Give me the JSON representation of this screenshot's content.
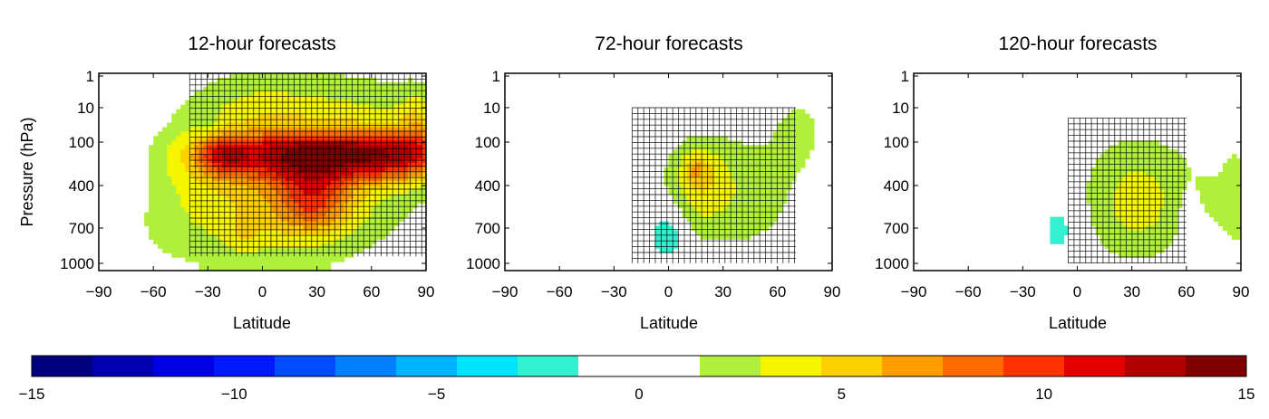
{
  "chart_data": {
    "type": "heatmap",
    "panels": [
      {
        "title": "12-hour forecasts",
        "xlabel": "Latitude",
        "ylabel": "Pressure (hPa)",
        "yticks": [
          "1",
          "10",
          "100",
          "400",
          "700",
          "1000"
        ],
        "blobs": [
          {
            "lat": -20,
            "lev": 3.0,
            "rx": 72,
            "ry": 2.2,
            "a": 2.8
          },
          {
            "lat": 50,
            "lev": 1.6,
            "rx": 50,
            "ry": 1.6,
            "a": 3.0
          },
          {
            "lat": 20,
            "lev": 3.5,
            "rx": 58,
            "ry": 1.6,
            "a": 2.0
          },
          {
            "lat": -5,
            "lev": 1.1,
            "rx": 32,
            "ry": 1.3,
            "a": 1.8
          },
          {
            "lat": 30,
            "lev": 2.3,
            "rx": 55,
            "ry": 0.55,
            "a": 9.0
          },
          {
            "lat": 75,
            "lev": 2.3,
            "rx": 25,
            "ry": 0.6,
            "a": 5.0
          },
          {
            "lat": -22,
            "lev": 2.3,
            "rx": 14,
            "ry": 0.45,
            "a": 4.5
          },
          {
            "lat": 28,
            "lev": 3.3,
            "rx": 20,
            "ry": 0.8,
            "a": 5.5
          },
          {
            "lat": 85,
            "lev": 1.5,
            "rx": 10,
            "ry": 1.0,
            "a": 3.0
          },
          {
            "lat": -10,
            "lev": 4.2,
            "rx": 9,
            "ry": 0.5,
            "a": 1.5
          },
          {
            "lat": -72,
            "lev": 2.4,
            "rx": 16,
            "ry": 1.4,
            "a": -1.5
          },
          {
            "lat": -58,
            "lev": 0.9,
            "rx": 6,
            "ry": 0.4,
            "a": -1.2
          },
          {
            "lat": -30,
            "lev": 1.4,
            "rx": 5,
            "ry": 0.4,
            "a": -1.2
          }
        ],
        "hatch": {
          "lat": [
            -40,
            90
          ],
          "lev": [
            0,
            4.8
          ]
        }
      },
      {
        "title": "72-hour forecasts",
        "xlabel": "Latitude",
        "ylabel": "",
        "yticks": [
          "1",
          "10",
          "100",
          "400",
          "700",
          "1000"
        ],
        "blobs": [
          {
            "lat": 35,
            "lev": 3.2,
            "rx": 42,
            "ry": 1.6,
            "a": 2.4
          },
          {
            "lat": 72,
            "lev": 1.6,
            "rx": 15,
            "ry": 1.2,
            "a": 1.7
          },
          {
            "lat": 18,
            "lev": 2.9,
            "rx": 16,
            "ry": 0.9,
            "a": 2.5
          },
          {
            "lat": 15,
            "lev": 2.6,
            "rx": 7,
            "ry": 0.35,
            "a": 2.5
          },
          {
            "lat": -1,
            "lev": 4.2,
            "rx": 10,
            "ry": 0.7,
            "a": -3.5
          },
          {
            "lat": 78,
            "lev": 3.8,
            "rx": 10,
            "ry": 1.1,
            "a": -1.0
          }
        ],
        "hatch": {
          "lat": [
            -20,
            70
          ],
          "lev": [
            1.0,
            5.0
          ]
        }
      },
      {
        "title": "120-hour forecasts",
        "xlabel": "Latitude",
        "ylabel": "",
        "yticks": [
          "1",
          "10",
          "100",
          "400",
          "700",
          "1000"
        ],
        "blobs": [
          {
            "lat": 45,
            "lev": 3.3,
            "rx": 52,
            "ry": 1.5,
            "a": 2.2
          },
          {
            "lat": 30,
            "lev": 3.5,
            "rx": 22,
            "ry": 1.6,
            "a": 1.6
          },
          {
            "lat": 88,
            "lev": 3.3,
            "rx": 8,
            "ry": 1.2,
            "a": 1.5
          },
          {
            "lat": -10,
            "lev": 4.0,
            "rx": 12,
            "ry": 0.9,
            "a": -2.5
          },
          {
            "lat": 60,
            "lev": 3.6,
            "rx": 8,
            "ry": 0.8,
            "a": -1.2
          }
        ],
        "hatch": {
          "lat": [
            -5,
            60
          ],
          "lev": [
            1.3,
            5.0
          ]
        }
      }
    ],
    "xticks": [
      -90,
      -60,
      -30,
      0,
      30,
      60,
      90
    ],
    "x_range": [
      -90,
      90
    ],
    "y_scale": "log",
    "y_range_hPa": [
      1,
      1000
    ],
    "hatching": "stippled grid crosses",
    "colorbar": {
      "range": [
        -15,
        15
      ],
      "tick_labels": [
        "−15",
        "−10",
        "−5",
        "0",
        "5",
        "10",
        "15"
      ],
      "colors": [
        "#00007f",
        "#0000b2",
        "#0000e5",
        "#0019ff",
        "#004cff",
        "#007fff",
        "#00b2ff",
        "#00e5ff",
        "#33f0d0",
        "#ffffff",
        "#ffffff",
        "#b0f03c",
        "#f5f500",
        "#ffd000",
        "#ff9c00",
        "#ff6a00",
        "#ff3300",
        "#e50000",
        "#b20000",
        "#7f0000"
      ]
    }
  }
}
